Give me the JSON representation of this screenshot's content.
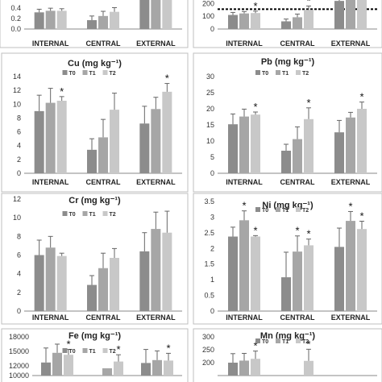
{
  "legend_labels": [
    "T0",
    "T1",
    "T2"
  ],
  "series_colors": [
    "#8c8c8c",
    "#a6a6a6",
    "#c8c8c8"
  ],
  "star_symbol": "*",
  "chart_data": [
    {
      "type": "bar",
      "title": "",
      "categories": [
        "INTERNAL",
        "CENTRAL",
        "EXTERNAL"
      ],
      "ylim": [
        0,
        0.65
      ],
      "yticks": [
        "0.0",
        "0.2",
        "0.4"
      ],
      "series": [
        {
          "name": "T0",
          "values": [
            0.32,
            0.17,
            0.62
          ],
          "errors": [
            0.06,
            0.08,
            0.0
          ],
          "significant": [
            false,
            false,
            false
          ]
        },
        {
          "name": "T1",
          "values": [
            0.35,
            0.25,
            0.62
          ],
          "errors": [
            0.05,
            0.09,
            0.0
          ],
          "significant": [
            false,
            false,
            false
          ]
        },
        {
          "name": "T2",
          "values": [
            0.35,
            0.33,
            0.62
          ],
          "errors": [
            0.04,
            0.08,
            0.0
          ],
          "significant": [
            false,
            false,
            false
          ]
        }
      ],
      "legend": false
    },
    {
      "type": "bar",
      "title": "",
      "categories": [
        "INTERNAL",
        "CENTRAL",
        "EXTERNAL"
      ],
      "ylim": [
        0,
        265
      ],
      "yticks": [
        "0",
        "100",
        "200"
      ],
      "reference_line": 155,
      "series": [
        {
          "name": "T0",
          "values": [
            110,
            60,
            220
          ],
          "errors": [
            20,
            18,
            20
          ],
          "significant": [
            false,
            false,
            false
          ]
        },
        {
          "name": "T1",
          "values": [
            122,
            92,
            262
          ],
          "errors": [
            15,
            25,
            0
          ],
          "significant": [
            false,
            false,
            false
          ]
        },
        {
          "name": "T2",
          "values": [
            125,
            150,
            262
          ],
          "errors": [
            15,
            30,
            0
          ],
          "significant": [
            true,
            true,
            false
          ]
        }
      ],
      "legend": false
    },
    {
      "type": "bar",
      "title": "Cu (mg kg⁻¹)",
      "categories": [
        "INTERNAL",
        "CENTRAL",
        "EXTERNAL"
      ],
      "ylim": [
        0,
        14
      ],
      "yticks": [
        "0",
        "2",
        "4",
        "6",
        "8",
        "10",
        "12",
        "14"
      ],
      "series": [
        {
          "name": "T0",
          "values": [
            9.0,
            3.4,
            7.2
          ],
          "errors": [
            2.3,
            1.6,
            2.5
          ],
          "significant": [
            false,
            false,
            false
          ]
        },
        {
          "name": "T1",
          "values": [
            10.2,
            5.2,
            9.3
          ],
          "errors": [
            2.1,
            2.6,
            1.7
          ],
          "significant": [
            false,
            false,
            false
          ]
        },
        {
          "name": "T2",
          "values": [
            10.5,
            9.2,
            11.8
          ],
          "errors": [
            0.6,
            2.4,
            1.2
          ],
          "significant": [
            true,
            false,
            true
          ]
        }
      ],
      "legend": true
    },
    {
      "type": "bar",
      "title": "Pb (mg kg⁻¹)",
      "categories": [
        "INTERNAL",
        "CENTRAL",
        "EXTERNAL"
      ],
      "ylim": [
        0,
        30
      ],
      "yticks": [
        "0",
        "5",
        "10",
        "15",
        "20",
        "25",
        "30"
      ],
      "series": [
        {
          "name": "T0",
          "values": [
            15.2,
            7.0,
            12.7
          ],
          "errors": [
            3.2,
            2.0,
            3.7
          ],
          "significant": [
            false,
            false,
            false
          ]
        },
        {
          "name": "T1",
          "values": [
            17.6,
            10.6,
            17.3
          ],
          "errors": [
            2.3,
            3.8,
            1.6
          ],
          "significant": [
            false,
            false,
            false
          ]
        },
        {
          "name": "T2",
          "values": [
            18.2,
            16.8,
            20.0
          ],
          "errors": [
            0.8,
            3.5,
            2.1
          ],
          "significant": [
            true,
            true,
            true
          ]
        }
      ],
      "legend": true
    },
    {
      "type": "bar",
      "title": "Cr (mg kg⁻¹)",
      "categories": [
        "INTERNAL",
        "CENTRAL",
        "EXTERNAL"
      ],
      "ylim": [
        0,
        12
      ],
      "yticks": [
        "0",
        "2",
        "4",
        "6",
        "8",
        "10",
        "12"
      ],
      "series": [
        {
          "name": "T0",
          "values": [
            6.0,
            2.8,
            6.4
          ],
          "errors": [
            1.6,
            1.0,
            2.0
          ],
          "significant": [
            false,
            false,
            false
          ]
        },
        {
          "name": "T1",
          "values": [
            6.8,
            4.6,
            8.8
          ],
          "errors": [
            1.2,
            1.6,
            1.8
          ],
          "significant": [
            false,
            false,
            false
          ]
        },
        {
          "name": "T2",
          "values": [
            5.9,
            5.7,
            8.4
          ],
          "errors": [
            0.3,
            1.0,
            2.3
          ],
          "significant": [
            false,
            false,
            false
          ]
        }
      ],
      "legend": true
    },
    {
      "type": "bar",
      "title": "Ni (mg kg⁻¹)",
      "categories": [
        "INTERNAL",
        "CENTRAL",
        "EXTERNAL"
      ],
      "ylim": [
        0,
        3.5
      ],
      "yticks": [
        "0",
        "0.5",
        "1",
        "1.5",
        "2",
        "2.5",
        "3",
        "3.5"
      ],
      "series": [
        {
          "name": "T0",
          "values": [
            2.38,
            1.08,
            2.05
          ],
          "errors": [
            0.3,
            0.8,
            0.6
          ],
          "significant": [
            false,
            false,
            false
          ]
        },
        {
          "name": "T1",
          "values": [
            2.9,
            1.9,
            2.88
          ],
          "errors": [
            0.3,
            0.5,
            0.3
          ],
          "significant": [
            true,
            true,
            true
          ]
        },
        {
          "name": "T2",
          "values": [
            2.38,
            2.1,
            2.62
          ],
          "errors": [
            0.03,
            0.2,
            0.25
          ],
          "significant": [
            true,
            true,
            true
          ]
        }
      ],
      "legend": true
    },
    {
      "type": "bar",
      "title": "Fe (mg kg⁻¹)",
      "categories": [
        "INTERNAL",
        "CENTRAL",
        "EXTERNAL"
      ],
      "ylim": [
        10000,
        18000
      ],
      "yticks": [
        "10000",
        "12000",
        "15000",
        "18000"
      ],
      "yticks_values": [
        10000,
        12000,
        15000,
        18000
      ],
      "series": [
        {
          "name": "T0",
          "values": [
            12700,
            10000,
            12600
          ],
          "errors": [
            3000,
            0,
            2800
          ],
          "significant": [
            false,
            false,
            false
          ]
        },
        {
          "name": "T1",
          "values": [
            14700,
            11500,
            13200
          ],
          "errors": [
            1800,
            0,
            1900
          ],
          "significant": [
            false,
            false,
            false
          ]
        },
        {
          "name": "T2",
          "values": [
            14300,
            12900,
            13100
          ],
          "errors": [
            1100,
            1400,
            1500
          ],
          "significant": [
            true,
            true,
            true
          ]
        }
      ],
      "legend": true,
      "partial": true
    },
    {
      "type": "bar",
      "title": "Mn (mg kg⁻¹)",
      "categories": [
        "INTERNAL",
        "CENTRAL",
        "EXTERNAL"
      ],
      "ylim": [
        150,
        300
      ],
      "yticks": [
        "200",
        "250",
        "300"
      ],
      "series": [
        {
          "name": "T0",
          "values": [
            200,
            150,
            150
          ],
          "errors": [
            35,
            0,
            0
          ],
          "significant": [
            false,
            false,
            false
          ]
        },
        {
          "name": "T1",
          "values": [
            208,
            150,
            150
          ],
          "errors": [
            28,
            0,
            0
          ],
          "significant": [
            false,
            false,
            false
          ]
        },
        {
          "name": "T2",
          "values": [
            215,
            207,
            150
          ],
          "errors": [
            30,
            45,
            0
          ],
          "significant": [
            true,
            true,
            false
          ]
        }
      ],
      "legend": true,
      "partial": true
    }
  ]
}
